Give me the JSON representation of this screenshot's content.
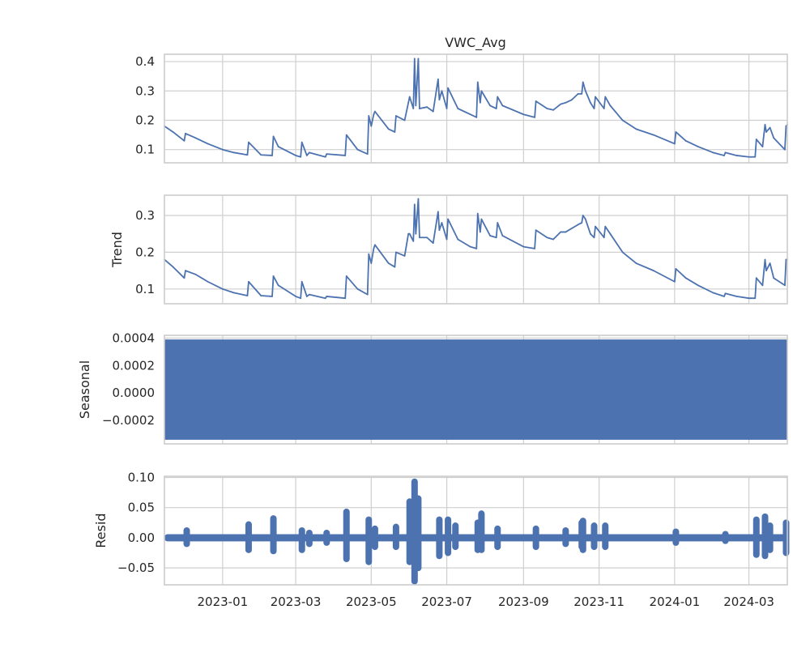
{
  "figure_title": "VWC_Avg",
  "colors": {
    "series": "#4c72b0",
    "grid": "#cfcfcf",
    "frame": "#cccccc",
    "text": "#262626"
  },
  "chart_data": [
    {
      "type": "line",
      "title": "VWC_Avg",
      "ylabel": "",
      "ylim": [
        0.055,
        0.425
      ],
      "yticks": [
        0.1,
        0.2,
        0.3,
        0.4
      ],
      "ytick_labels": [
        "0.1",
        "0.2",
        "0.3",
        "0.4"
      ],
      "grid": true,
      "x": [
        "2022-11-15",
        "2022-11-22",
        "2022-12-01",
        "2022-12-02",
        "2022-12-10",
        "2022-12-20",
        "2023-01-01",
        "2023-01-10",
        "2023-01-21",
        "2023-01-22",
        "2023-02-01",
        "2023-02-10",
        "2023-02-11",
        "2023-02-15",
        "2023-03-01",
        "2023-03-05",
        "2023-03-06",
        "2023-03-10",
        "2023-03-12",
        "2023-03-25",
        "2023-03-26",
        "2023-04-10",
        "2023-04-11",
        "2023-04-20",
        "2023-04-28",
        "2023-04-29",
        "2023-05-01",
        "2023-05-03",
        "2023-05-04",
        "2023-05-15",
        "2023-05-20",
        "2023-05-21",
        "2023-05-28",
        "2023-05-31",
        "2023-06-01",
        "2023-06-04",
        "2023-06-05",
        "2023-06-06",
        "2023-06-08",
        "2023-06-09",
        "2023-06-15",
        "2023-06-20",
        "2023-06-24",
        "2023-06-25",
        "2023-06-27",
        "2023-07-01",
        "2023-07-02",
        "2023-07-10",
        "2023-07-20",
        "2023-07-25",
        "2023-07-26",
        "2023-07-28",
        "2023-07-29",
        "2023-08-05",
        "2023-08-10",
        "2023-08-11",
        "2023-08-15",
        "2023-09-01",
        "2023-09-10",
        "2023-09-11",
        "2023-09-20",
        "2023-09-25",
        "2023-10-01",
        "2023-10-05",
        "2023-10-10",
        "2023-10-15",
        "2023-10-18",
        "2023-10-19",
        "2023-10-21",
        "2023-10-25",
        "2023-10-28",
        "2023-10-29",
        "2023-11-05",
        "2023-11-06",
        "2023-11-10",
        "2023-11-20",
        "2023-12-01",
        "2023-12-15",
        "2024-01-01",
        "2024-01-02",
        "2024-01-10",
        "2024-01-20",
        "2024-02-01",
        "2024-02-10",
        "2024-02-11",
        "2024-02-20",
        "2024-03-01",
        "2024-03-02",
        "2024-03-06",
        "2024-03-07",
        "2024-03-12",
        "2024-03-14",
        "2024-03-15",
        "2024-03-18",
        "2024-03-21",
        "2024-03-30",
        "2024-03-31",
        "2024-04-01"
      ],
      "values": [
        0.18,
        0.16,
        0.13,
        0.155,
        0.14,
        0.12,
        0.1,
        0.09,
        0.082,
        0.125,
        0.082,
        0.08,
        0.145,
        0.11,
        0.08,
        0.075,
        0.125,
        0.08,
        0.09,
        0.075,
        0.085,
        0.08,
        0.15,
        0.1,
        0.085,
        0.215,
        0.18,
        0.22,
        0.23,
        0.17,
        0.16,
        0.215,
        0.2,
        0.26,
        0.28,
        0.24,
        0.41,
        0.25,
        0.41,
        0.24,
        0.245,
        0.23,
        0.34,
        0.27,
        0.3,
        0.24,
        0.31,
        0.24,
        0.22,
        0.21,
        0.33,
        0.26,
        0.3,
        0.25,
        0.24,
        0.28,
        0.25,
        0.22,
        0.21,
        0.265,
        0.24,
        0.235,
        0.255,
        0.26,
        0.27,
        0.29,
        0.29,
        0.33,
        0.3,
        0.26,
        0.24,
        0.28,
        0.24,
        0.28,
        0.25,
        0.2,
        0.17,
        0.15,
        0.12,
        0.16,
        0.13,
        0.11,
        0.09,
        0.08,
        0.09,
        0.08,
        0.075,
        0.075,
        0.075,
        0.135,
        0.11,
        0.185,
        0.16,
        0.175,
        0.14,
        0.1,
        0.18,
        0.185
      ]
    },
    {
      "type": "line",
      "title": "",
      "ylabel": "Trend",
      "ylim": [
        0.06,
        0.355
      ],
      "yticks": [
        0.1,
        0.2,
        0.3
      ],
      "ytick_labels": [
        "0.1",
        "0.2",
        "0.3"
      ],
      "grid": true,
      "x": [
        "2022-11-15",
        "2022-11-22",
        "2022-12-01",
        "2022-12-02",
        "2022-12-10",
        "2022-12-20",
        "2023-01-01",
        "2023-01-10",
        "2023-01-21",
        "2023-01-22",
        "2023-02-01",
        "2023-02-10",
        "2023-02-11",
        "2023-02-15",
        "2023-03-01",
        "2023-03-05",
        "2023-03-06",
        "2023-03-10",
        "2023-03-12",
        "2023-03-25",
        "2023-03-26",
        "2023-04-10",
        "2023-04-11",
        "2023-04-20",
        "2023-04-28",
        "2023-04-29",
        "2023-05-01",
        "2023-05-03",
        "2023-05-04",
        "2023-05-15",
        "2023-05-20",
        "2023-05-21",
        "2023-05-28",
        "2023-05-31",
        "2023-06-01",
        "2023-06-04",
        "2023-06-05",
        "2023-06-06",
        "2023-06-08",
        "2023-06-09",
        "2023-06-15",
        "2023-06-20",
        "2023-06-24",
        "2023-06-25",
        "2023-06-27",
        "2023-07-01",
        "2023-07-02",
        "2023-07-10",
        "2023-07-20",
        "2023-07-25",
        "2023-07-26",
        "2023-07-28",
        "2023-07-29",
        "2023-08-05",
        "2023-08-10",
        "2023-08-11",
        "2023-08-15",
        "2023-09-01",
        "2023-09-10",
        "2023-09-11",
        "2023-09-20",
        "2023-09-25",
        "2023-10-01",
        "2023-10-05",
        "2023-10-10",
        "2023-10-15",
        "2023-10-18",
        "2023-10-19",
        "2023-10-21",
        "2023-10-25",
        "2023-10-28",
        "2023-10-29",
        "2023-11-05",
        "2023-11-06",
        "2023-11-10",
        "2023-11-20",
        "2023-12-01",
        "2023-12-15",
        "2024-01-01",
        "2024-01-02",
        "2024-01-10",
        "2024-01-20",
        "2024-02-01",
        "2024-02-10",
        "2024-02-11",
        "2024-02-20",
        "2024-03-01",
        "2024-03-02",
        "2024-03-06",
        "2024-03-07",
        "2024-03-12",
        "2024-03-14",
        "2024-03-15",
        "2024-03-18",
        "2024-03-21",
        "2024-03-30",
        "2024-03-31",
        "2024-04-01"
      ],
      "values": [
        0.18,
        0.16,
        0.13,
        0.15,
        0.14,
        0.12,
        0.1,
        0.09,
        0.082,
        0.12,
        0.082,
        0.08,
        0.135,
        0.11,
        0.08,
        0.075,
        0.12,
        0.08,
        0.085,
        0.075,
        0.08,
        0.075,
        0.135,
        0.1,
        0.085,
        0.195,
        0.17,
        0.21,
        0.22,
        0.17,
        0.16,
        0.2,
        0.19,
        0.25,
        0.25,
        0.23,
        0.33,
        0.25,
        0.345,
        0.24,
        0.24,
        0.225,
        0.31,
        0.26,
        0.28,
        0.235,
        0.29,
        0.235,
        0.215,
        0.21,
        0.305,
        0.255,
        0.29,
        0.245,
        0.24,
        0.28,
        0.245,
        0.215,
        0.21,
        0.26,
        0.24,
        0.235,
        0.255,
        0.255,
        0.265,
        0.275,
        0.28,
        0.3,
        0.29,
        0.25,
        0.24,
        0.27,
        0.24,
        0.27,
        0.25,
        0.2,
        0.17,
        0.15,
        0.12,
        0.155,
        0.13,
        0.11,
        0.09,
        0.08,
        0.088,
        0.08,
        0.075,
        0.075,
        0.075,
        0.13,
        0.11,
        0.18,
        0.15,
        0.17,
        0.13,
        0.11,
        0.18,
        0.18
      ]
    },
    {
      "type": "area",
      "title": "",
      "ylabel": "Seasonal",
      "ylim": [
        -0.00037,
        0.00042
      ],
      "yticks": [
        -0.0002,
        0.0,
        0.0002,
        0.0004
      ],
      "ytick_labels": [
        "−0.0002",
        "0.0000",
        "0.0002",
        "0.0004"
      ],
      "grid": true,
      "band": {
        "min": -0.00034,
        "max": 0.00039,
        "x_start": "2022-11-15",
        "x_end": "2024-04-01"
      }
    },
    {
      "type": "scatter",
      "title": "",
      "ylabel": "Resid",
      "ylim": [
        -0.078,
        0.102
      ],
      "yticks": [
        -0.05,
        0.0,
        0.05,
        0.1
      ],
      "ytick_labels": [
        "−0.05",
        "0.00",
        "0.05",
        "0.10"
      ],
      "grid": true,
      "base_band": {
        "min": -0.006,
        "max": 0.006,
        "x_start": "2022-11-15",
        "x_end": "2024-04-01"
      },
      "bursts": [
        {
          "x": "2022-12-03",
          "min": -0.01,
          "max": 0.012
        },
        {
          "x": "2023-01-22",
          "min": -0.02,
          "max": 0.022
        },
        {
          "x": "2023-02-11",
          "min": -0.022,
          "max": 0.032
        },
        {
          "x": "2023-03-06",
          "min": -0.02,
          "max": 0.012
        },
        {
          "x": "2023-03-12",
          "min": -0.01,
          "max": 0.008
        },
        {
          "x": "2023-03-26",
          "min": -0.008,
          "max": 0.008
        },
        {
          "x": "2023-04-11",
          "min": -0.035,
          "max": 0.043
        },
        {
          "x": "2023-04-29",
          "min": -0.04,
          "max": 0.03
        },
        {
          "x": "2023-05-04",
          "min": -0.015,
          "max": 0.015
        },
        {
          "x": "2023-05-21",
          "min": -0.015,
          "max": 0.018
        },
        {
          "x": "2023-06-01",
          "min": -0.04,
          "max": 0.06
        },
        {
          "x": "2023-06-05",
          "min": -0.072,
          "max": 0.093
        },
        {
          "x": "2023-06-08",
          "min": -0.05,
          "max": 0.065
        },
        {
          "x": "2023-06-25",
          "min": -0.03,
          "max": 0.03
        },
        {
          "x": "2023-07-02",
          "min": -0.025,
          "max": 0.03
        },
        {
          "x": "2023-07-08",
          "min": -0.015,
          "max": 0.02
        },
        {
          "x": "2023-07-26",
          "min": -0.02,
          "max": 0.025
        },
        {
          "x": "2023-07-29",
          "min": -0.02,
          "max": 0.04
        },
        {
          "x": "2023-08-11",
          "min": -0.015,
          "max": 0.015
        },
        {
          "x": "2023-09-11",
          "min": -0.015,
          "max": 0.015
        },
        {
          "x": "2023-10-05",
          "min": -0.01,
          "max": 0.012
        },
        {
          "x": "2023-10-18",
          "min": -0.015,
          "max": 0.025
        },
        {
          "x": "2023-10-19",
          "min": -0.02,
          "max": 0.028
        },
        {
          "x": "2023-10-28",
          "min": -0.015,
          "max": 0.02
        },
        {
          "x": "2023-11-06",
          "min": -0.015,
          "max": 0.02
        },
        {
          "x": "2024-01-02",
          "min": -0.008,
          "max": 0.01
        },
        {
          "x": "2024-02-11",
          "min": -0.005,
          "max": 0.006
        },
        {
          "x": "2024-03-07",
          "min": -0.028,
          "max": 0.03
        },
        {
          "x": "2024-03-14",
          "min": -0.03,
          "max": 0.035
        },
        {
          "x": "2024-03-18",
          "min": -0.02,
          "max": 0.02
        },
        {
          "x": "2024-03-31",
          "min": -0.025,
          "max": 0.025
        }
      ]
    }
  ],
  "x_axis": {
    "range": [
      "2022-11-15",
      "2024-04-01"
    ],
    "ticks": [
      "2023-01-01",
      "2023-03-01",
      "2023-05-01",
      "2023-07-01",
      "2023-09-01",
      "2023-11-01",
      "2024-01-01",
      "2024-03-01"
    ],
    "tick_labels": [
      "2023-01",
      "2023-03",
      "2023-05",
      "2023-07",
      "2023-09",
      "2023-11",
      "2024-01",
      "2024-03"
    ]
  }
}
